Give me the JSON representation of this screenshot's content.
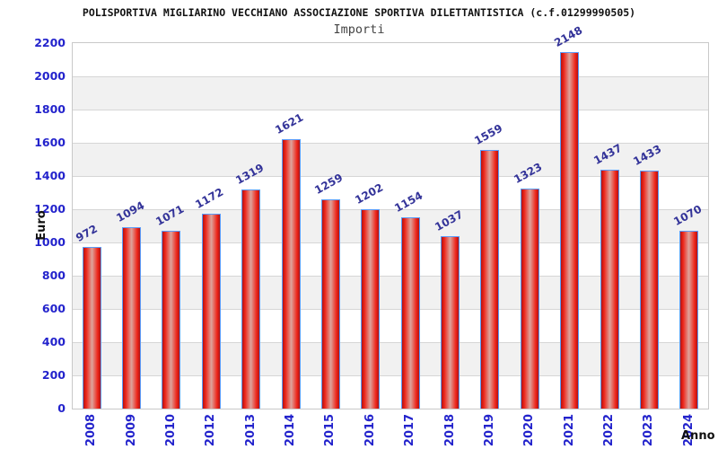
{
  "page": {
    "background": "#ffffff"
  },
  "chart_data": {
    "type": "bar",
    "title": "POLISPORTIVA MIGLIARINO VECCHIANO ASSOCIAZIONE SPORTIVA DILETTANTISTICA (c.f.01299990505)",
    "subtitle": "Importi",
    "xlabel": "Anno",
    "ylabel": "Euro",
    "categories": [
      "2008",
      "2009",
      "2010",
      "2012",
      "2013",
      "2014",
      "2015",
      "2016",
      "2017",
      "2018",
      "2019",
      "2020",
      "2021",
      "2022",
      "2023",
      "2024"
    ],
    "values": [
      972,
      1094,
      1071,
      1172,
      1319,
      1621,
      1259,
      1202,
      1154,
      1037,
      1559,
      1323,
      2148,
      1437,
      1433,
      1070
    ],
    "ylim": [
      0,
      2200
    ],
    "ytick_step": 200,
    "grid": true,
    "legend_position": "none",
    "band_colors": [
      "#ffffff",
      "#f1f1f1"
    ],
    "colors": {
      "title": "#111111",
      "subtitle": "#444444",
      "tick_label": "#2323cc",
      "value_label": "#333399",
      "axis_title": "#111111",
      "plot_border": "#c9c9c9",
      "gridline": "#d6d6d6",
      "bar_border": "#5b9bf8",
      "bar_edge": "#b01313",
      "bar_main": "#ee2419",
      "bar_center": "#dda49c"
    }
  }
}
